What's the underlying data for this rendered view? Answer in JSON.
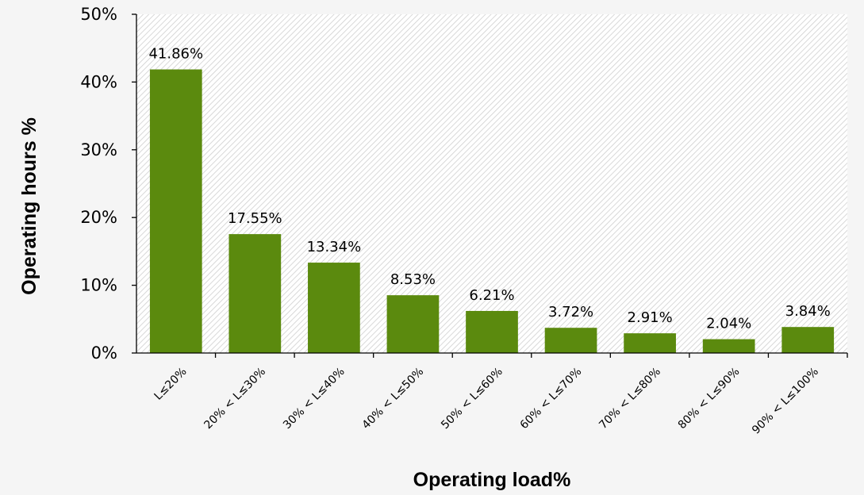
{
  "chart_data": {
    "type": "bar",
    "title": "",
    "xlabel": "Operating load%",
    "ylabel": "Operating hours %",
    "categories": [
      "L≤20%",
      "20% < L≤30%",
      "30% < L≤40%",
      "40% < L≤50%",
      "50% < L≤60%",
      "60% < L≤70%",
      "70% < L≤80%",
      "80% < L≤90%",
      "90% < L≤100%"
    ],
    "values": [
      41.86,
      17.55,
      13.34,
      8.53,
      6.21,
      3.72,
      2.91,
      2.04,
      3.84
    ],
    "value_labels": [
      "41.86%",
      "17.55%",
      "13.34%",
      "8.53%",
      "6.21%",
      "3.72%",
      "2.91%",
      "2.04%",
      "3.84%"
    ],
    "ylim": [
      0,
      50
    ],
    "yticks": [
      0,
      10,
      20,
      30,
      40,
      50
    ],
    "ytick_labels": [
      "0%",
      "10%",
      "20%",
      "30%",
      "40%",
      "50%"
    ],
    "grid": false,
    "legend": "none",
    "bar_color": "#5b8a0e",
    "plot_background": "hatched-gray"
  }
}
